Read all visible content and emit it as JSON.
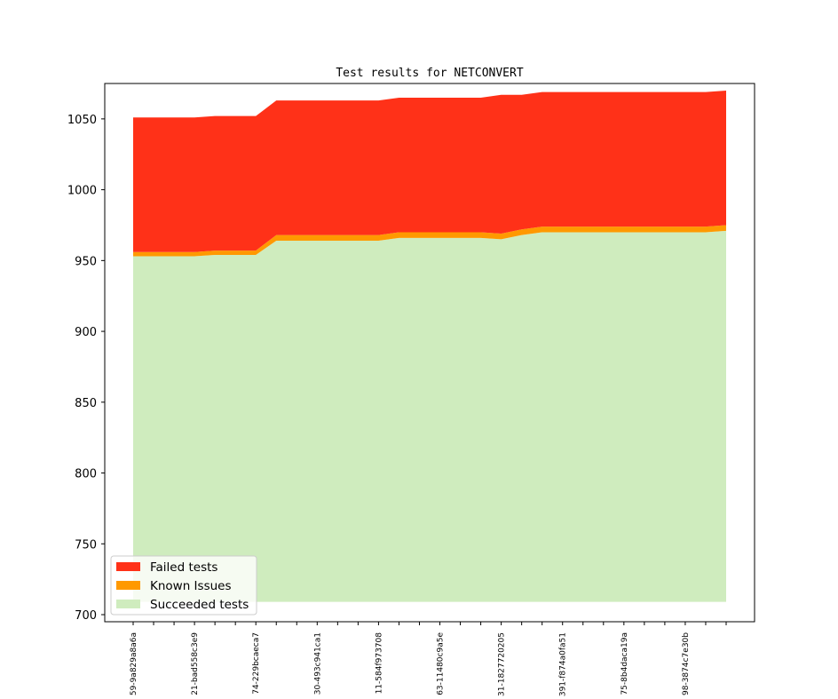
{
  "chart_data": {
    "type": "area",
    "stacked": true,
    "title": "Test results for NETCONVERT",
    "xlabel": "",
    "ylabel": "",
    "ylim": [
      695,
      1075
    ],
    "yticks": [
      700,
      750,
      800,
      850,
      900,
      950,
      1000,
      1050
    ],
    "area_base": 709,
    "x_count": 30,
    "x_tick_labels": [
      {
        "index": 0,
        "label": "59-9a829a8a6a"
      },
      {
        "index": 3,
        "label": "21-bad558c3e9"
      },
      {
        "index": 6,
        "label": "74-229bcaeca7"
      },
      {
        "index": 9,
        "label": "30-493c941ca1"
      },
      {
        "index": 12,
        "label": "11-584f973708"
      },
      {
        "index": 15,
        "label": "63-11480c9a5e"
      },
      {
        "index": 18,
        "label": "31-1827720205"
      },
      {
        "index": 21,
        "label": "391-f874a0fa51"
      },
      {
        "index": 24,
        "label": "75-8b4daca19a"
      },
      {
        "index": 27,
        "label": "98-3874c7e30b"
      }
    ],
    "series": [
      {
        "name": "Succeeded tests",
        "color": "#cfecbe",
        "cumulative_top": [
          953,
          953,
          953,
          953,
          954,
          954,
          954,
          964,
          964,
          964,
          964,
          964,
          964,
          966,
          966,
          966,
          966,
          966,
          965,
          968,
          970,
          970,
          970,
          970,
          970,
          970,
          970,
          970,
          970,
          971
        ]
      },
      {
        "name": "Known Issues",
        "color": "#ff9900",
        "cumulative_top": [
          956,
          956,
          956,
          956,
          957,
          957,
          957,
          968,
          968,
          968,
          968,
          968,
          968,
          970,
          970,
          970,
          970,
          970,
          969,
          972,
          974,
          974,
          974,
          974,
          974,
          974,
          974,
          974,
          974,
          975
        ]
      },
      {
        "name": "Failed tests",
        "color": "#ff3118",
        "cumulative_top": [
          1051,
          1051,
          1051,
          1051,
          1052,
          1052,
          1052,
          1063,
          1063,
          1063,
          1063,
          1063,
          1063,
          1065,
          1065,
          1065,
          1065,
          1065,
          1067,
          1067,
          1069,
          1069,
          1069,
          1069,
          1069,
          1069,
          1069,
          1069,
          1069,
          1070
        ]
      }
    ],
    "legend": {
      "placement": "lower-left",
      "entries": [
        {
          "label": "Failed tests",
          "color": "#ff3118"
        },
        {
          "label": "Known Issues",
          "color": "#ff9900"
        },
        {
          "label": "Succeeded tests",
          "color": "#cfecbe"
        }
      ]
    },
    "grid": false
  }
}
